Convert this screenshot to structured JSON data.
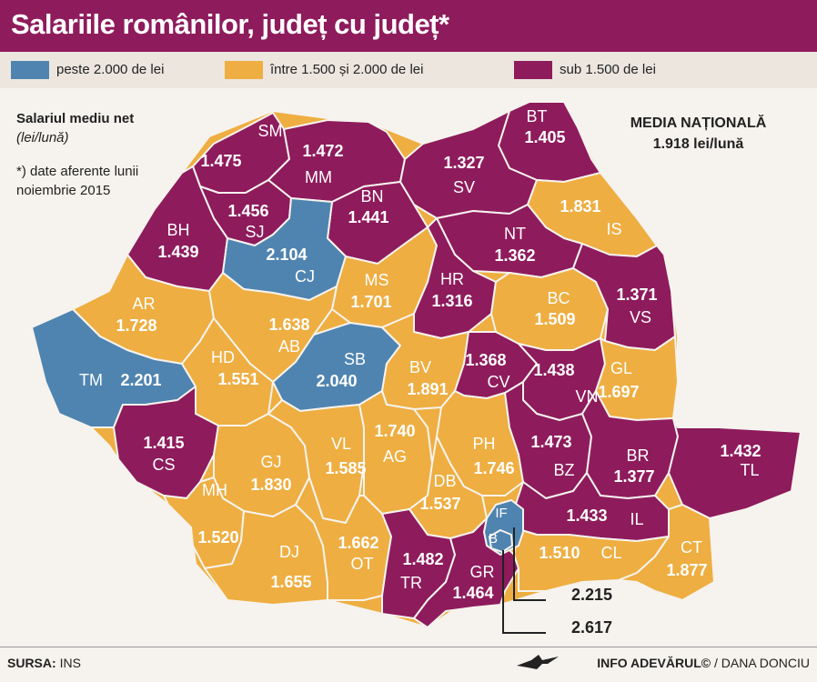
{
  "title": "Salariile românilor, județ cu județ*",
  "legend": [
    {
      "label": "peste 2.000 de lei",
      "color": "#4f84b0"
    },
    {
      "label": "între 1.500 și 2.000 de lei",
      "color": "#eeae41"
    },
    {
      "label": "sub 1.500 de lei",
      "color": "#8e1b5c"
    }
  ],
  "note": {
    "title": "Salariul mediu net",
    "unit": "(lei/lună)",
    "footnote": "*) date aferente lunii noiembrie 2015"
  },
  "national": {
    "label": "MEDIA NAȚIONALĂ",
    "value": "1.918 lei/lună"
  },
  "counties": [
    {
      "code": "SM",
      "value": "1.475",
      "group": "low"
    },
    {
      "code": "MM",
      "value": "1.472",
      "group": "low"
    },
    {
      "code": "BT",
      "value": "1.405",
      "group": "low"
    },
    {
      "code": "SV",
      "value": "1.327",
      "group": "low"
    },
    {
      "code": "BN",
      "value": "1.441",
      "group": "low"
    },
    {
      "code": "SJ",
      "value": "1.456",
      "group": "low"
    },
    {
      "code": "BH",
      "value": "1.439",
      "group": "low"
    },
    {
      "code": "CJ",
      "value": "2.104",
      "group": "high"
    },
    {
      "code": "IS",
      "value": "1.831",
      "group": "mid"
    },
    {
      "code": "NT",
      "value": "1.362",
      "group": "low"
    },
    {
      "code": "MS",
      "value": "1.701",
      "group": "mid"
    },
    {
      "code": "HR",
      "value": "1.316",
      "group": "low"
    },
    {
      "code": "AR",
      "value": "1.728",
      "group": "mid"
    },
    {
      "code": "AB",
      "value": "1.638",
      "group": "mid"
    },
    {
      "code": "BC",
      "value": "1.509",
      "group": "mid"
    },
    {
      "code": "VS",
      "value": "1.371",
      "group": "low"
    },
    {
      "code": "TM",
      "value": "2.201",
      "group": "high"
    },
    {
      "code": "HD",
      "value": "1.551",
      "group": "mid"
    },
    {
      "code": "SB",
      "value": "2.040",
      "group": "high"
    },
    {
      "code": "BV",
      "value": "1.891",
      "group": "mid"
    },
    {
      "code": "CV",
      "value": "1.368",
      "group": "low"
    },
    {
      "code": "VN",
      "value": "1.438",
      "group": "low"
    },
    {
      "code": "GL",
      "value": "1.697",
      "group": "mid"
    },
    {
      "code": "CS",
      "value": "1.415",
      "group": "low"
    },
    {
      "code": "GJ",
      "value": "1.830",
      "group": "mid"
    },
    {
      "code": "VL",
      "value": "1.585",
      "group": "mid"
    },
    {
      "code": "AG",
      "value": "1.740",
      "group": "mid"
    },
    {
      "code": "PH",
      "value": "1.746",
      "group": "mid"
    },
    {
      "code": "BZ",
      "value": "1.473",
      "group": "low"
    },
    {
      "code": "BR",
      "value": "1.377",
      "group": "low"
    },
    {
      "code": "TL",
      "value": "1.432",
      "group": "low"
    },
    {
      "code": "MH",
      "value": "1.520",
      "group": "mid"
    },
    {
      "code": "DB",
      "value": "1.537",
      "group": "mid"
    },
    {
      "code": "IL",
      "value": "1.433",
      "group": "low"
    },
    {
      "code": "DJ",
      "value": "1.655",
      "group": "mid"
    },
    {
      "code": "OT",
      "value": "1.662",
      "group": "mid"
    },
    {
      "code": "TR",
      "value": "1.482",
      "group": "low"
    },
    {
      "code": "GR",
      "value": "1.464",
      "group": "low"
    },
    {
      "code": "CL",
      "value": "1.510",
      "group": "mid"
    },
    {
      "code": "CT",
      "value": "1.877",
      "group": "mid"
    },
    {
      "code": "IF",
      "value": "2.215",
      "group": "high"
    },
    {
      "code": "B",
      "value": "2.617",
      "group": "high"
    }
  ],
  "source": {
    "label": "SURSA:",
    "value": "INS"
  },
  "credit": {
    "brand": "INFO ADEVĂRUL©",
    "author": " / DANA DONCIU"
  },
  "icons": {
    "brand": "eagle-icon"
  }
}
